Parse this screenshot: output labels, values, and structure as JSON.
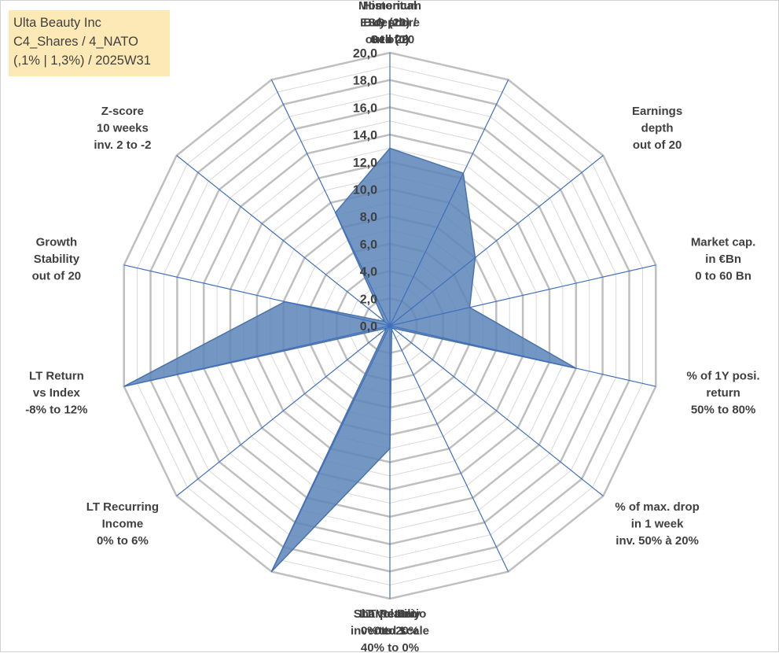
{
  "title_lines": [
    "Ulta Beauty Inc",
    "C4_Shares / 4_NATO",
    "(,1% | 1,3%) / 2025W31"
  ],
  "chart_data": {
    "type": "radar",
    "rmin": 0,
    "rmax": 20,
    "ticks": [
      "0,0",
      "2,0",
      "4,0",
      "6,0",
      "8,0",
      "10,0",
      "12,0",
      "14,0",
      "16,0",
      "18,0",
      "20,0"
    ],
    "axes": [
      [
        "ESG score",
        "0 to 20"
      ],
      [
        "Historical",
        "depth",
        "out of 20"
      ],
      [
        "Earnings",
        "depth",
        "out of 20"
      ],
      [
        "Market cap.",
        "in €Bn",
        "0 to 60 Bn"
      ],
      [
        "% of 1Y posi.",
        "return",
        "50% to 80%"
      ],
      [
        "% of max. drop",
        "in 1 week",
        "inv. 50% à 20%"
      ],
      [
        "LT Volatiliy",
        "inverted scale",
        "40% to 0%"
      ],
      [
        "Sharpe Ratio",
        "0 to 1"
      ],
      [
        "LT Return",
        "0% to 20%"
      ],
      [
        "LT Recurring",
        "Income",
        "0% to 6%"
      ],
      [
        "LT Return",
        "vs Index",
        "-8% to 12%"
      ],
      [
        "Growth",
        "Stability",
        "out of 20"
      ],
      [
        "Z-score",
        "10 weeks",
        "inv. 2 to -2"
      ],
      [
        "Momentum",
        "Buy (20) /",
        "Sell (0)"
      ]
    ],
    "series": [
      {
        "values": [
          13.0,
          12.4,
          8.0,
          6.0,
          14.0,
          0.3,
          0.3,
          9.0,
          20.0,
          0.3,
          20.0,
          7.9,
          0.5,
          9.2
        ]
      }
    ],
    "colors": {
      "fill": "#5b84b8",
      "stroke": "#4a73aa",
      "grid": "#bfbfbf",
      "gridMinor": "#d9d9d9",
      "spoke": "#3f6fbd"
    },
    "legend": "none"
  }
}
